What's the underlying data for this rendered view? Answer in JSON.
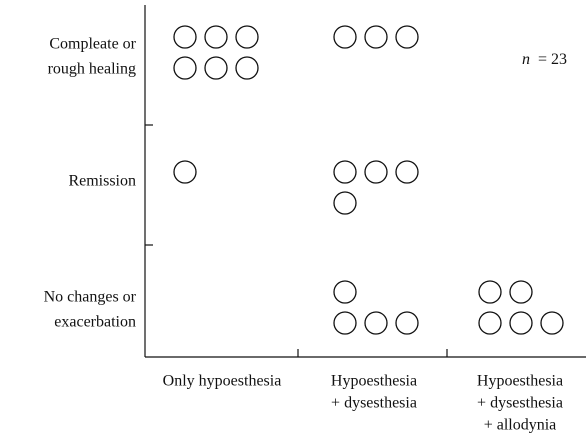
{
  "chart_data": {
    "type": "dot-matrix",
    "x_categories": [
      [
        "Only hypoesthesia"
      ],
      [
        "Hypoesthesia",
        "+ dysesthesia"
      ],
      [
        "Hypoesthesia",
        "+ dysesthesia",
        "+ allodynia"
      ]
    ],
    "y_categories": [
      [
        "Compleate or",
        "rough healing"
      ],
      [
        "Remission"
      ],
      [
        "No changes or",
        "exacerbation"
      ]
    ],
    "counts": [
      [
        6,
        3,
        0
      ],
      [
        1,
        4,
        0
      ],
      [
        0,
        4,
        5
      ]
    ],
    "annotation": {
      "variable": "n",
      "text": "= 23"
    }
  }
}
